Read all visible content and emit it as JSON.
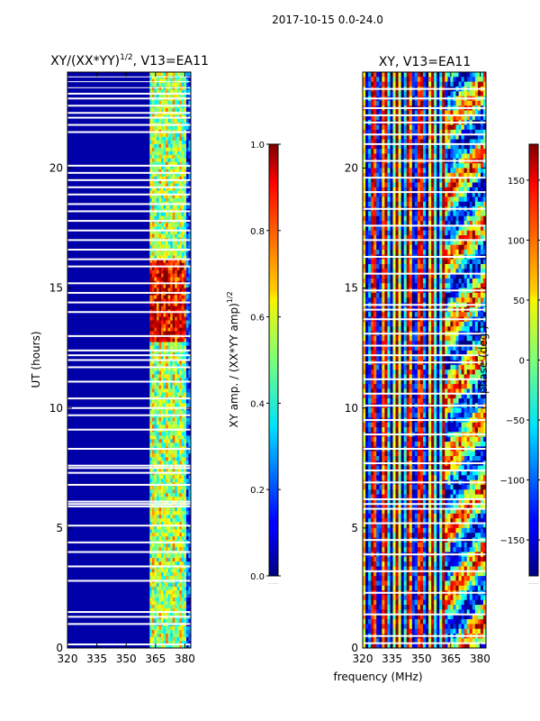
{
  "suptitle": "2017-10-15 0.0-24.0",
  "shared_xlabel": "frequency (MHz)",
  "chart_data": [
    {
      "type": "heatmap",
      "title": "XY/(XX*YY)",
      "title_sup": "1/2",
      "title_suffix": ", V13=EA11",
      "xlabel": "",
      "ylabel": "UT (hours)",
      "xlim": [
        320,
        383
      ],
      "ylim": [
        0,
        24
      ],
      "xticks": [
        320,
        335,
        350,
        365,
        380
      ],
      "yticks": [
        0,
        5,
        10,
        15,
        20
      ],
      "colorbar": {
        "label": "XY amp. / (XX*YY amp)",
        "label_sup": "1/2",
        "range": [
          0.0,
          1.0
        ],
        "ticks": [
          0.0,
          0.2,
          0.4,
          0.6,
          0.8,
          1.0
        ],
        "tick_labels": [
          "0.0",
          "0.2",
          "0.4",
          "0.6",
          "0.8",
          "1.0"
        ],
        "colormap": "jet"
      },
      "baseline_value": 0.04,
      "band_start_mhz": 362,
      "band_value_low": 0.5,
      "band_value_high": 0.85,
      "high_band_hours": [
        12.8,
        16.2
      ],
      "flagged_rows_hours": [
        0.15,
        1.0,
        1.3,
        1.5,
        2.8,
        3.4,
        4.0,
        4.4,
        5.1,
        5.9,
        6.0,
        6.1,
        6.8,
        7.3,
        7.5,
        7.6,
        8.3,
        9.1,
        9.7,
        10.0,
        10.4,
        11.1,
        11.7,
        12.0,
        12.2,
        12.4,
        13.0,
        14.0,
        14.4,
        14.8,
        15.2,
        15.9,
        16.2,
        16.6,
        17.0,
        17.4,
        17.8,
        18.2,
        18.5,
        18.9,
        19.2,
        19.5,
        19.8,
        20.1,
        21.5,
        21.8,
        22.1,
        22.3,
        22.6,
        22.9,
        23.1
      ],
      "fine_flag_hours": [
        23.35,
        23.6,
        23.8
      ]
    },
    {
      "type": "heatmap",
      "title": "XY, V13=EA11",
      "xlabel": "frequency (MHz)",
      "ylabel": "",
      "xlim": [
        320,
        383
      ],
      "ylim": [
        0,
        24
      ],
      "xticks": [
        320,
        335,
        350,
        365,
        380
      ],
      "yticks": [
        0,
        5,
        10,
        15,
        20
      ],
      "colorbar": {
        "label": "phase (deg.)",
        "range": [
          -180,
          180
        ],
        "ticks": [
          -150,
          -100,
          -50,
          0,
          50,
          100,
          150
        ],
        "tick_labels": [
          "−150",
          "−100",
          "−50",
          "0",
          "50",
          "100",
          "150"
        ],
        "colormap": "jet"
      },
      "stripe_period_mhz": 6,
      "flagged_rows_hours": [
        0.2,
        0.5,
        1.4,
        2.3,
        3.2,
        3.9,
        4.5,
        5.2,
        5.8,
        6.0,
        6.2,
        6.9,
        7.4,
        7.7,
        8.3,
        8.9,
        9.5,
        10.1,
        10.6,
        11.2,
        11.9,
        12.2,
        12.6,
        13.1,
        13.7,
        14.1,
        14.3,
        14.9,
        15.6,
        16.3,
        17.0,
        17.6,
        18.3,
        19.0,
        19.6,
        20.3,
        21.0,
        21.4,
        21.9,
        22.2,
        22.5,
        22.9,
        23.3
      ]
    }
  ]
}
